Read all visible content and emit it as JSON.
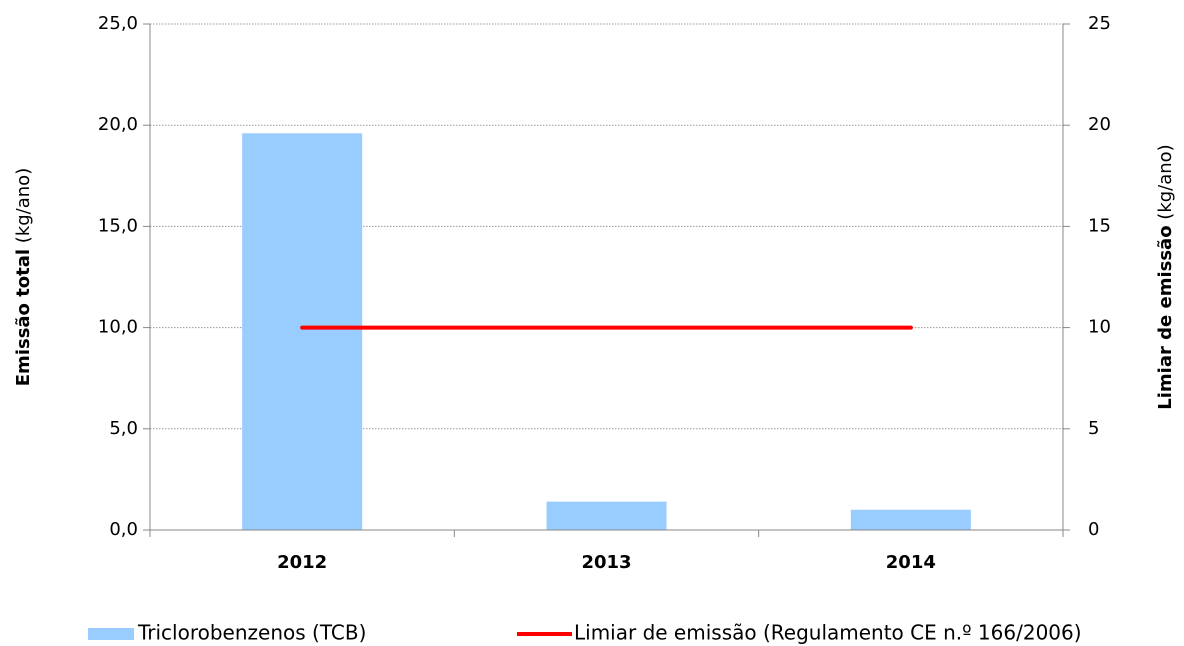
{
  "chart_data": {
    "type": "combo",
    "ylabel": [
      "Emissão total",
      "(kg/ano)"
    ],
    "y2label": [
      "Limiar de emissão",
      "(kg/ano)"
    ],
    "categories": [
      "2012",
      "2013",
      "2014"
    ],
    "series": [
      {
        "name": "Triclorobenzenos (TCB)",
        "type": "bar",
        "color": "#99ccff",
        "values": [
          19.6,
          1.4,
          1.0
        ]
      },
      {
        "name": "Limiar de emissão (Regulamento CE n.º 166/2006)",
        "type": "line",
        "axis": "y2",
        "color": "#ff0000",
        "values": [
          10,
          10,
          10
        ]
      }
    ],
    "ylim": [
      0,
      25
    ],
    "yticks": [
      {
        "value": 0,
        "label": "0,0"
      },
      {
        "value": 5,
        "label": "5,0"
      },
      {
        "value": 10,
        "label": "10,0"
      },
      {
        "value": 15,
        "label": "15,0"
      },
      {
        "value": 20,
        "label": "20,0"
      },
      {
        "value": 25,
        "label": "25,0"
      }
    ],
    "y2lim": [
      0,
      25
    ],
    "y2ticks": [
      0,
      5,
      10,
      15,
      20,
      25
    ],
    "grid": true,
    "legend": "bottom"
  }
}
